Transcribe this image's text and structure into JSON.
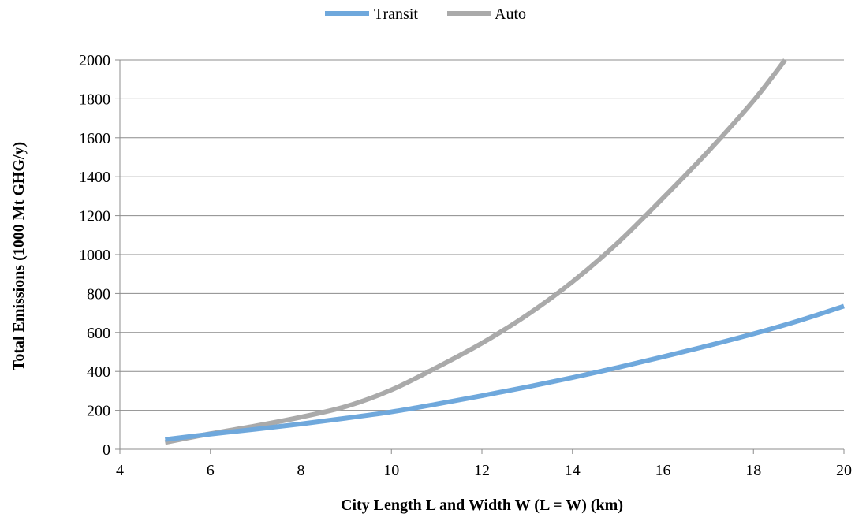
{
  "chart_data": {
    "type": "line",
    "title": "",
    "xlabel": "City Length L and Width W (L = W) (km)",
    "ylabel": "Total Emissions (1000 Mt GHG/y)",
    "xlim": [
      4,
      20
    ],
    "ylim": [
      0,
      2000
    ],
    "xticks": [
      4,
      6,
      8,
      10,
      12,
      14,
      16,
      18,
      20
    ],
    "yticks": [
      0,
      200,
      400,
      600,
      800,
      1000,
      1200,
      1400,
      1600,
      1800,
      2000
    ],
    "grid": "horizontal",
    "legend_position": "top-center",
    "series": [
      {
        "name": "Transit",
        "color": "#6fa8dc",
        "x": [
          5,
          6,
          7,
          8,
          9,
          10,
          11,
          12,
          13,
          14,
          15,
          16,
          17,
          18,
          19,
          20
        ],
        "y": [
          50,
          78,
          103,
          130,
          160,
          192,
          232,
          275,
          320,
          368,
          420,
          475,
          532,
          593,
          660,
          735
        ]
      },
      {
        "name": "Auto",
        "color": "#aaaaaa",
        "x": [
          5,
          6,
          7,
          8,
          9,
          10,
          11,
          12,
          13,
          14,
          15,
          16,
          17,
          18,
          18.7
        ],
        "y": [
          35,
          80,
          120,
          165,
          220,
          305,
          420,
          545,
          690,
          860,
          1060,
          1290,
          1530,
          1790,
          2000
        ]
      }
    ]
  }
}
